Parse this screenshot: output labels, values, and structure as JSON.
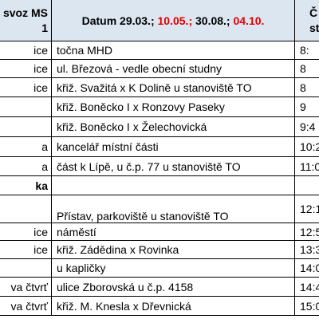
{
  "header": {
    "left": [
      "svoz MS",
      "1"
    ],
    "date_parts": [
      "Datum 29.03.; ",
      "10.05.;",
      " 30.08.; ",
      "04.10."
    ],
    "right": [
      "Č",
      "sta"
    ]
  },
  "rows": [
    [
      "ice",
      "točna MHD",
      "8:"
    ],
    [
      "ice",
      "ul. Březová - vedle obecní studny",
      "8"
    ],
    [
      "ice",
      "křiž. Svažitá x K Dolině u stanoviště TO",
      "8"
    ],
    [
      null,
      "křiž. Boněcko I x Ronzovy Paseky",
      "9"
    ],
    [
      null,
      "křiž. Boněcko I x Želechovická",
      "9:4"
    ],
    [
      "a",
      "kancelář místní části",
      "10:2"
    ],
    [
      "a",
      "část k Lípě, u č.p. 77 u stanoviště TO",
      "11:0"
    ],
    [
      "ka",
      null,
      null
    ],
    [
      null,
      "Přístav, parkoviště u stanoviště TO",
      "12:1"
    ],
    [
      "ice",
      "náměstí",
      "12:5"
    ],
    [
      "ice",
      "křiž. Zádědina x Rovinka",
      "13:3"
    ],
    [
      null,
      "u kapličky",
      "14:0"
    ],
    [
      "va čtvrť",
      "ulice Zborovská u č.p. 4158",
      "14:4"
    ],
    [
      "va čtvrť",
      "křiž. M. Knesla x Dřevnická",
      "15:0"
    ]
  ]
}
